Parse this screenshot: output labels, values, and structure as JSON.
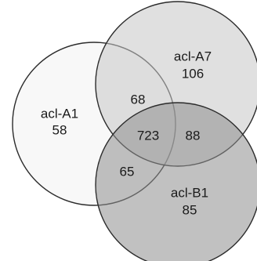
{
  "sets": [
    {
      "name": "acl-A1",
      "only": "58",
      "color": "#f2f2f2"
    },
    {
      "name": "acl-A7",
      "only": "106",
      "color": "#c6c6c6"
    },
    {
      "name": "acl-B1",
      "only": "85",
      "color": "#8e8e8e"
    }
  ],
  "intersections": {
    "a1_a7": "68",
    "a1_b1": "65",
    "a7_b1": "88",
    "all": "723"
  }
}
